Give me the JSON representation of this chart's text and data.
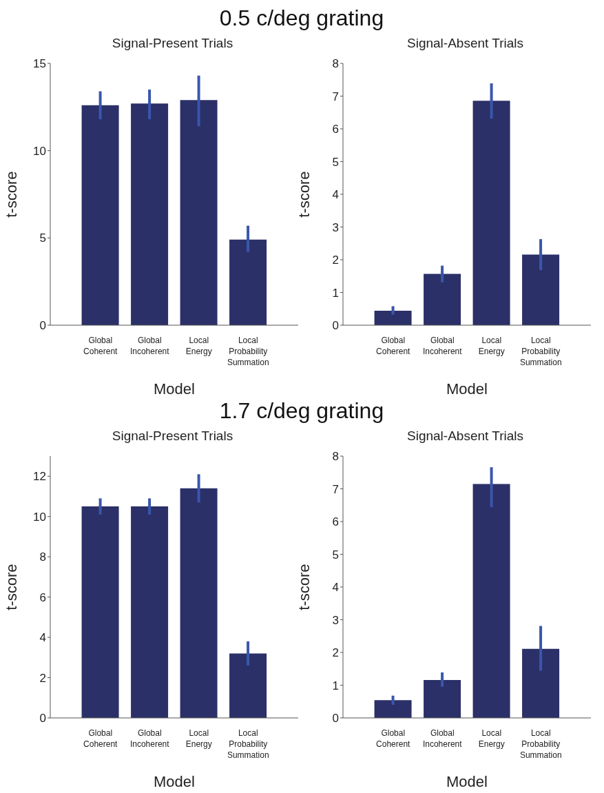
{
  "chart_data": [
    {
      "type": "bar",
      "annotations": [
        "0.5 c/deg grating"
      ],
      "title": "Signal-Present Trials",
      "xlabel": "Model",
      "ylabel": "t-score",
      "categories": [
        "Global Coherent",
        "Global Incoherent",
        "Local Energy",
        "Local Probability Summation"
      ],
      "values": [
        12.6,
        12.7,
        12.9,
        4.9
      ],
      "errors": [
        [
          11.8,
          13.4
        ],
        [
          11.8,
          13.5
        ],
        [
          11.4,
          14.3
        ],
        [
          4.2,
          5.7
        ]
      ],
      "color": "#2b3068",
      "ylim": [
        0,
        15
      ],
      "yticks": [
        0,
        5,
        10,
        15
      ],
      "grid": false,
      "legend": false
    },
    {
      "type": "bar",
      "title": "Signal-Absent Trials",
      "xlabel": "Model",
      "ylabel": "t-score",
      "categories": [
        "Global Coherent",
        "Global Incoherent",
        "Local Energy",
        "Local Probability Summation"
      ],
      "values": [
        0.44,
        1.57,
        6.86,
        2.16
      ],
      "errors": [
        [
          0.32,
          0.58
        ],
        [
          1.31,
          1.82
        ],
        [
          6.31,
          7.39
        ],
        [
          1.68,
          2.63
        ]
      ],
      "color": "#2b3068",
      "ylim": [
        0,
        8
      ],
      "yticks": [
        0,
        1,
        2,
        3,
        4,
        5,
        6,
        7,
        8
      ],
      "grid": false,
      "legend": false
    },
    {
      "type": "bar",
      "annotations": [
        "1.7 c/deg grating"
      ],
      "title": "Signal-Present Trials",
      "xlabel": "Model",
      "ylabel": "t-score",
      "categories": [
        "Global Coherent",
        "Global Incoherent",
        "Local Energy",
        "Local Probability Summation"
      ],
      "values": [
        10.5,
        10.5,
        11.4,
        3.2
      ],
      "errors": [
        [
          10.1,
          10.9
        ],
        [
          10.1,
          10.9
        ],
        [
          10.7,
          12.1
        ],
        [
          2.6,
          3.8
        ]
      ],
      "color": "#2b3068",
      "ylim": [
        0,
        13
      ],
      "yticks": [
        0,
        2,
        4,
        6,
        8,
        10,
        12
      ],
      "grid": false,
      "legend": false
    },
    {
      "type": "bar",
      "title": "Signal-Absent Trials",
      "xlabel": "Model",
      "ylabel": "t-score",
      "categories": [
        "Global Coherent",
        "Global Incoherent",
        "Local Energy",
        "Local Probability Summation"
      ],
      "values": [
        0.54,
        1.16,
        7.15,
        2.11
      ],
      "errors": [
        [
          0.4,
          0.68
        ],
        [
          0.95,
          1.39
        ],
        [
          6.44,
          7.66
        ],
        [
          1.44,
          2.81
        ]
      ],
      "color": "#2b3068",
      "ylim": [
        0,
        8
      ],
      "yticks": [
        0,
        1,
        2,
        3,
        4,
        5,
        6,
        7,
        8
      ],
      "grid": false,
      "legend": false
    }
  ]
}
